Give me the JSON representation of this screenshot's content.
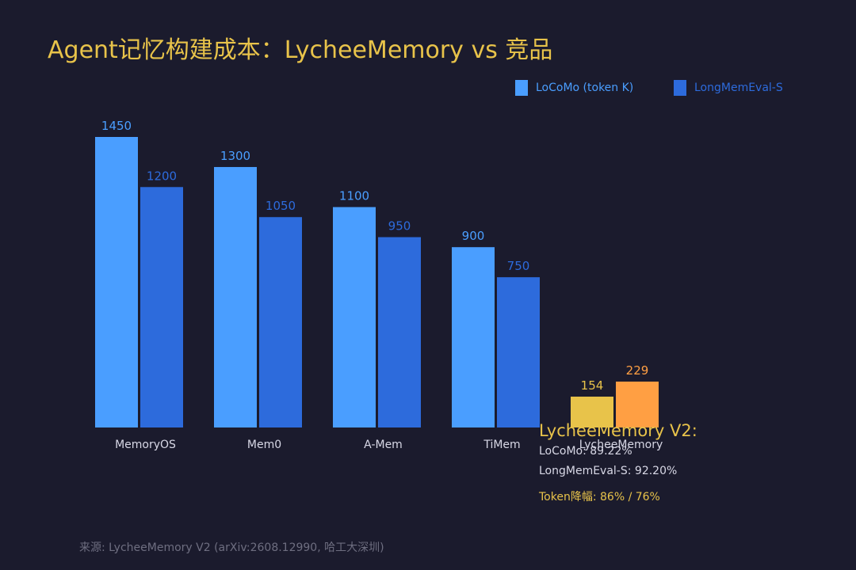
{
  "title": "Agent记忆构建成本：LycheeMemory vs 竞品",
  "legend": [
    {
      "label": "LoCoMo (token K)",
      "color": "#4a9eff"
    },
    {
      "label": "LongMemEval-S",
      "color": "#2d6bdc"
    }
  ],
  "chart_data": {
    "type": "bar",
    "title": "Agent记忆构建成本：LycheeMemory vs 竞品",
    "categories": [
      "MemoryOS",
      "Mem0",
      "A-Mem",
      "TiMem",
      "LycheeMemory"
    ],
    "series": [
      {
        "name": "LoCoMo (token K)",
        "values": [
          1450,
          1300,
          1100,
          900,
          154
        ],
        "color": "#4a9eff",
        "highlight_color": "#e8c34a"
      },
      {
        "name": "LongMemEval-S",
        "values": [
          1200,
          1050,
          950,
          750,
          229
        ],
        "color": "#2d6bdc",
        "highlight_color": "#ff9f43"
      }
    ],
    "highlight_category": "LycheeMemory",
    "ylim": [
      0,
      1450
    ],
    "grid": false,
    "legend_position": "top-right",
    "xlabel": "",
    "ylabel": ""
  },
  "annotation": {
    "title": "LycheeMemory V2:",
    "locomo": "LoCoMo: 89.22%",
    "longmemeval": "LongMemEval-S: 92.20%",
    "token_reduction": "Token降幅: 86% / 76%"
  },
  "source": "来源: LycheeMemory V2 (arXiv:2608.12990, 哈工大深圳)"
}
